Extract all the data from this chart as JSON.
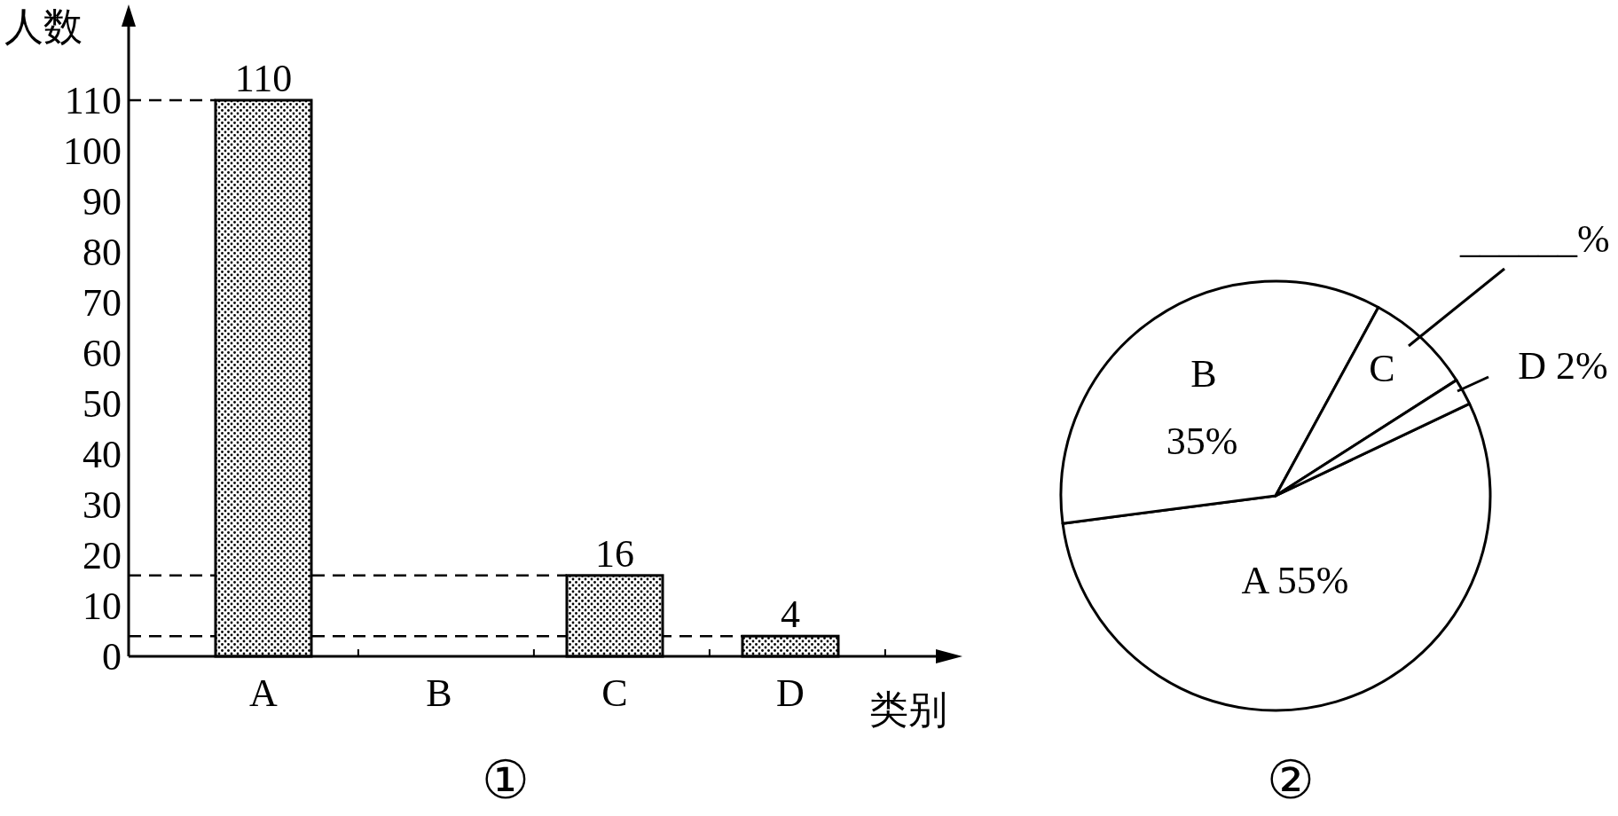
{
  "chart_data": [
    {
      "type": "bar",
      "title": "①",
      "xlabel": "类别",
      "ylabel": "人数",
      "categories": [
        "A",
        "B",
        "C",
        "D"
      ],
      "values": [
        110,
        null,
        16,
        4
      ],
      "color": "#000000",
      "ylim": [
        0,
        110
      ],
      "yticks": [
        0,
        10,
        20,
        30,
        40,
        50,
        60,
        70,
        80,
        90,
        100,
        110
      ],
      "data_labels": true,
      "ref_lines": [
        {
          "axis": "y",
          "value": 110,
          "line_style": "dashed"
        },
        {
          "axis": "y",
          "value": 16,
          "line_style": "dashed"
        },
        {
          "axis": "y",
          "value": 4,
          "line_style": "dashed"
        }
      ]
    },
    {
      "type": "pie",
      "title": "②",
      "categories": [
        "A",
        "B",
        "C",
        "D"
      ],
      "values": [
        55,
        35,
        8,
        2
      ],
      "colors": [
        "#ffffff",
        "#ffffff",
        "#ffffff",
        "#ffffff"
      ],
      "value_labels": [
        "55%",
        "35%",
        null,
        "2%"
      ],
      "annotations": [
        "______%"
      ]
    }
  ]
}
